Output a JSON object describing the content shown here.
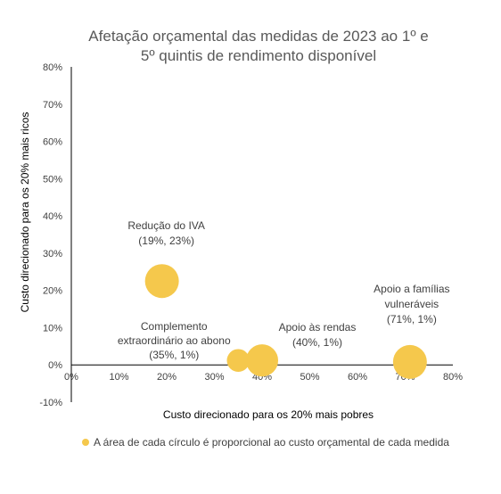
{
  "title": {
    "line1": "Afetação orçamental das medidas de 2023 ao 1º e",
    "line2": "5º quintis de rendimento disponível"
  },
  "legend": {
    "text": "A área de cada círculo é proporcional ao custo orçamental de cada medida",
    "color": "#F5C84C"
  },
  "colors": {
    "bubble": "#F5C84C",
    "axis": "#000000"
  },
  "chart_data": {
    "type": "scatter",
    "xlabel": "Custo direcionado para os 20% mais pobres",
    "ylabel": "Custo direcionado para os 20% mais ricos",
    "xlim": [
      0,
      80
    ],
    "ylim": [
      -10,
      80
    ],
    "x_ticks": [
      "0%",
      "10%",
      "20%",
      "30%",
      "40%",
      "50%",
      "60%",
      "70%",
      "80%"
    ],
    "y_ticks": [
      "-10%",
      "0%",
      "10%",
      "20%",
      "30%",
      "40%",
      "50%",
      "60%",
      "70%",
      "80%"
    ],
    "grid": false,
    "points": [
      {
        "name": "reducao-iva",
        "x": 19,
        "y": 22.5,
        "size": 1.0,
        "label_lines": [
          "Redução do IVA",
          "(19%, 23%)"
        ]
      },
      {
        "name": "complemento-abono",
        "x": 35,
        "y": 1.2,
        "size": 0.45,
        "label_lines": [
          "Complemento",
          "extraordinário ao abono",
          "(35%, 1%)"
        ]
      },
      {
        "name": "apoio-rendas",
        "x": 40,
        "y": 1.2,
        "size": 0.9,
        "label_lines": [
          "Apoio às rendas",
          "(40%, 1%)"
        ]
      },
      {
        "name": "apoio-familias",
        "x": 71,
        "y": 0.8,
        "size": 1.0,
        "label_lines": [
          "Apoio a famílias",
          "vulneráveis",
          "(71%, 1%)"
        ]
      }
    ]
  }
}
